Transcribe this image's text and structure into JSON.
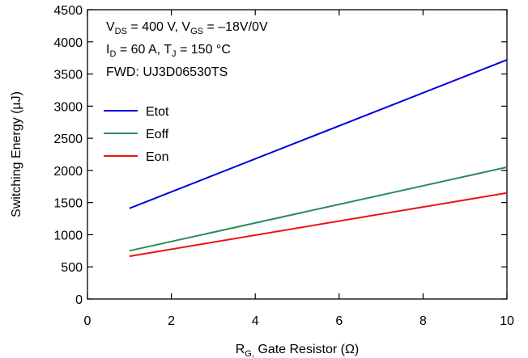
{
  "chart_data": {
    "type": "line",
    "xlabel_main": "R",
    "xlabel_sub": "G,",
    "xlabel_rest": " Gate Resistor (Ω)",
    "ylabel": "Switching Energy (µJ)",
    "xlim": [
      0,
      10
    ],
    "ylim": [
      0,
      4500
    ],
    "x_ticks": [
      "0",
      "2",
      "4",
      "6",
      "8",
      "10"
    ],
    "y_ticks": [
      "0",
      "500",
      "1000",
      "1500",
      "2000",
      "2500",
      "3000",
      "3500",
      "4000",
      "4500"
    ],
    "grid": false,
    "legend_position": "left",
    "annotations": {
      "line1": {
        "a": "V",
        "a_sub": "DS",
        "b": " = 400 V, V",
        "b_sub": "GS",
        "c": " = –18V/0V"
      },
      "line2": {
        "a": "I",
        "a_sub": "D",
        "b": " = 60 A, T",
        "b_sub": "J",
        "c": " = 150 °C"
      },
      "line3": "FWD: UJ3D06530TS"
    },
    "series": [
      {
        "name": "Etot",
        "color": "#0000dd",
        "x": [
          1,
          10
        ],
        "y": [
          1410,
          3720
        ]
      },
      {
        "name": "Eoff",
        "color": "#2e8b57",
        "x": [
          1,
          10
        ],
        "y": [
          750,
          2050
        ]
      },
      {
        "name": "Eon",
        "color": "#ee1111",
        "x": [
          1,
          10
        ],
        "y": [
          665,
          1650
        ]
      }
    ]
  }
}
